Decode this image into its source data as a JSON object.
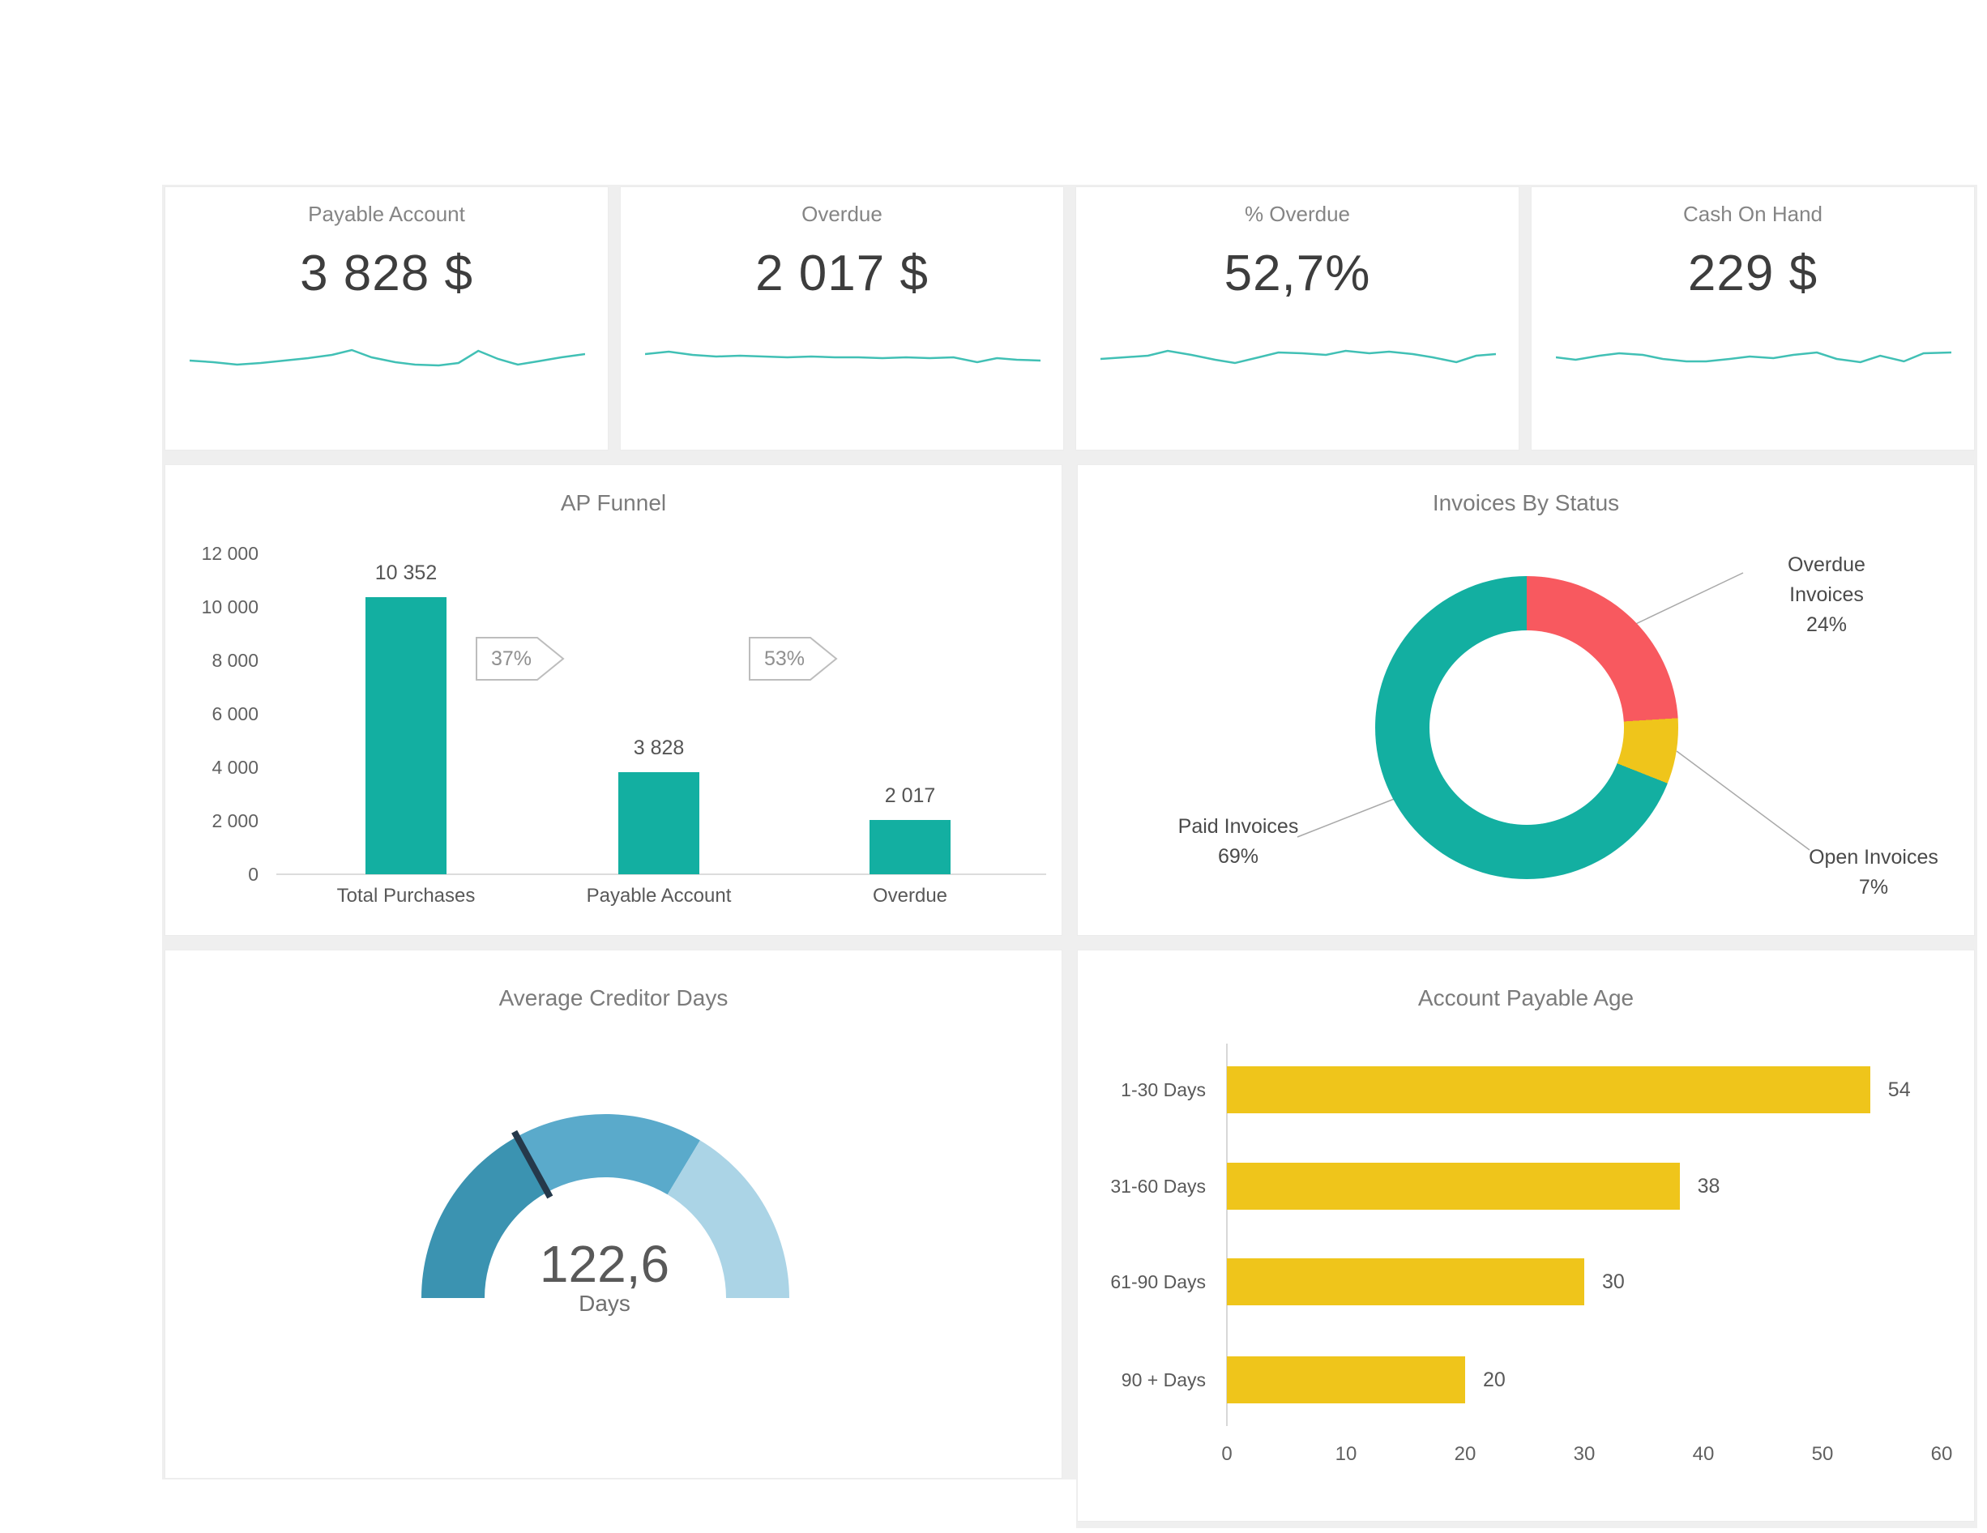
{
  "colors": {
    "teal": "#13AFA1",
    "sparkline": "#41C0B5",
    "red": "#F8595F",
    "yellow": "#EFC51B",
    "gauge_dark": "#3B93B1",
    "gauge_mid": "#5AAACB",
    "gauge_light": "#ABD4E6",
    "needle": "#25394B"
  },
  "kpi_cards": [
    {
      "title": "Payable Account",
      "value": "3 828 $",
      "sparkline": [
        [
          0,
          24
        ],
        [
          6,
          26
        ],
        [
          12,
          29
        ],
        [
          18,
          27
        ],
        [
          24,
          24
        ],
        [
          30,
          21
        ],
        [
          36,
          17
        ],
        [
          41,
          11
        ],
        [
          46,
          20
        ],
        [
          52,
          26
        ],
        [
          57,
          29
        ],
        [
          63,
          30
        ],
        [
          68,
          27
        ],
        [
          73,
          12
        ],
        [
          78,
          22
        ],
        [
          83,
          29
        ],
        [
          88,
          25
        ],
        [
          94,
          20
        ],
        [
          100,
          16
        ]
      ]
    },
    {
      "title": "Overdue",
      "value": "2 017 $",
      "sparkline": [
        [
          0,
          16
        ],
        [
          6,
          13
        ],
        [
          12,
          17
        ],
        [
          18,
          19
        ],
        [
          24,
          18
        ],
        [
          30,
          19
        ],
        [
          36,
          20
        ],
        [
          42,
          19
        ],
        [
          48,
          20
        ],
        [
          54,
          20
        ],
        [
          60,
          21
        ],
        [
          66,
          20
        ],
        [
          72,
          21
        ],
        [
          78,
          20
        ],
        [
          84,
          26
        ],
        [
          89,
          21
        ],
        [
          94,
          23
        ],
        [
          100,
          24
        ]
      ]
    },
    {
      "title": "% Overdue",
      "value": "52,7%",
      "sparkline": [
        [
          0,
          22
        ],
        [
          6,
          20
        ],
        [
          12,
          18
        ],
        [
          17,
          12
        ],
        [
          23,
          17
        ],
        [
          29,
          23
        ],
        [
          34,
          27
        ],
        [
          40,
          20
        ],
        [
          45,
          14
        ],
        [
          51,
          15
        ],
        [
          57,
          17
        ],
        [
          62,
          12
        ],
        [
          68,
          15
        ],
        [
          73,
          13
        ],
        [
          79,
          16
        ],
        [
          84,
          20
        ],
        [
          90,
          26
        ],
        [
          95,
          18
        ],
        [
          100,
          16
        ]
      ]
    },
    {
      "title": "Cash On Hand",
      "value": "229 $",
      "sparkline": [
        [
          0,
          20
        ],
        [
          5,
          23
        ],
        [
          11,
          18
        ],
        [
          16,
          15
        ],
        [
          22,
          17
        ],
        [
          27,
          22
        ],
        [
          33,
          25
        ],
        [
          38,
          25
        ],
        [
          44,
          22
        ],
        [
          49,
          19
        ],
        [
          55,
          21
        ],
        [
          60,
          17
        ],
        [
          66,
          14
        ],
        [
          71,
          22
        ],
        [
          77,
          26
        ],
        [
          82,
          18
        ],
        [
          88,
          25
        ],
        [
          93,
          15
        ],
        [
          100,
          14
        ]
      ]
    }
  ],
  "chart_data": [
    {
      "id": "ap_funnel",
      "type": "bar",
      "title": "AP Funnel",
      "categories": [
        "Total Purchases",
        "Payable Account",
        "Overdue"
      ],
      "values": [
        10352,
        3828,
        2017
      ],
      "value_labels": [
        "10 352",
        "3 828",
        "2 017"
      ],
      "badges": [
        "37%",
        "53%"
      ],
      "xlabel": "",
      "ylabel": "",
      "ylim": [
        0,
        12000
      ],
      "ytick_labels": [
        "12 000",
        "10 000",
        "8 000",
        "6 000",
        "4 000",
        "2 000",
        "0"
      ],
      "grid": false,
      "bar_color": "#13AFA1"
    },
    {
      "id": "invoices_by_status",
      "type": "pie",
      "donut": true,
      "title": "Invoices By Status",
      "slices": [
        {
          "label_lines": [
            "Overdue",
            "Invoices"
          ],
          "pct_label": "24%",
          "value": 24,
          "color_key": "red"
        },
        {
          "label_lines": [
            "Open Invoices"
          ],
          "pct_label": "7%",
          "value": 7,
          "color_key": "yellow"
        },
        {
          "label_lines": [
            "Paid Invoices"
          ],
          "pct_label": "69%",
          "value": 69,
          "color_key": "teal"
        }
      ],
      "start_angle_deg": 0,
      "direction": "clockwise",
      "legend_position": "callout-labels"
    },
    {
      "id": "avg_creditor_days",
      "type": "gauge",
      "title": "Average Creditor Days",
      "value": 122.6,
      "value_label": "122,6",
      "unit_label": "Days",
      "min": 0,
      "max": 360,
      "segments": [
        {
          "from": 0,
          "to": 122.6,
          "color_key": "gauge_dark"
        },
        {
          "from": 122.6,
          "to": 242,
          "color_key": "gauge_mid"
        },
        {
          "from": 242,
          "to": 360,
          "color_key": "gauge_light"
        }
      ],
      "needle_color_key": "needle"
    },
    {
      "id": "account_payable_age",
      "type": "bar",
      "orientation": "horizontal",
      "title": "Account Payable Age",
      "categories": [
        "1-30 Days",
        "31-60 Days",
        "61-90 Days",
        "90 + Days"
      ],
      "values": [
        54,
        38,
        30,
        20
      ],
      "value_labels": [
        "54",
        "38",
        "30",
        "20"
      ],
      "xlim": [
        0,
        60
      ],
      "xtick_labels": [
        "0",
        "10",
        "20",
        "30",
        "40",
        "50",
        "60"
      ],
      "grid": false,
      "bar_color": "#EFC51B"
    }
  ]
}
